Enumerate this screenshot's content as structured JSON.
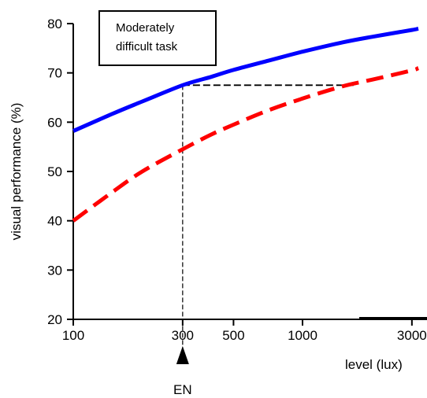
{
  "chart_data": {
    "type": "line",
    "title": "",
    "annotation": "Moderately difficult task",
    "xlabel": "level (lux)",
    "ylabel": "visual performance (%)",
    "x_scale": "log",
    "xlim": [
      100,
      3500
    ],
    "ylim": [
      20,
      80
    ],
    "x_ticks": [
      100,
      300,
      500,
      1000,
      3000
    ],
    "x_tick_labels": [
      "100",
      "300",
      "500",
      "1000",
      "3000"
    ],
    "y_ticks": [
      20,
      30,
      40,
      50,
      60,
      70,
      80
    ],
    "y_tick_labels": [
      "20",
      "30",
      "40",
      "50",
      "60",
      "70",
      "80"
    ],
    "marker_label": "EN",
    "marker_x": 300,
    "reference": {
      "x": 300,
      "y": 67.5,
      "x_end": 1700
    },
    "series": [
      {
        "color": "#0000ff",
        "style": "solid",
        "x": [
          100,
          150,
          200,
          300,
          400,
          500,
          700,
          1000,
          1500,
          2000,
          3000,
          3200
        ],
        "y": [
          58.2,
          61.8,
          64.2,
          67.5,
          69.2,
          70.6,
          72.4,
          74.3,
          76.2,
          77.3,
          78.7,
          79.0
        ]
      },
      {
        "color": "#ff0000",
        "style": "dashed",
        "x": [
          100,
          150,
          200,
          300,
          400,
          500,
          700,
          1000,
          1500,
          2000,
          3000,
          3200
        ],
        "y": [
          40.0,
          46.0,
          50.0,
          54.5,
          57.5,
          59.5,
          62.3,
          64.8,
          67.3,
          68.6,
          70.5,
          71.0
        ]
      }
    ]
  }
}
